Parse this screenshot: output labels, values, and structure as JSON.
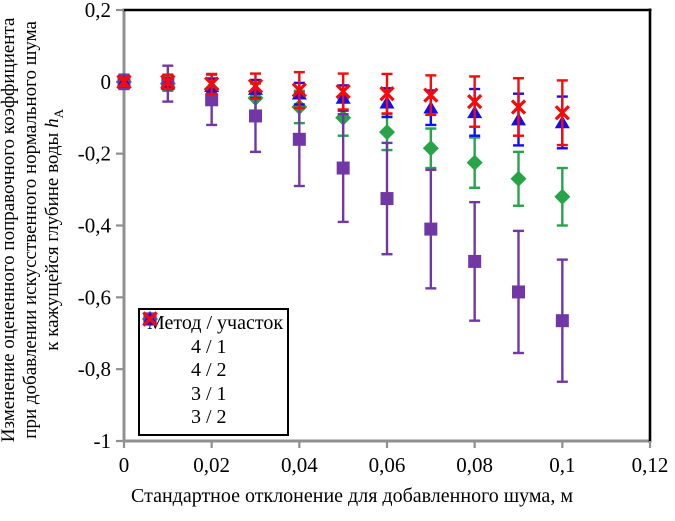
{
  "chart_data": {
    "type": "scatter",
    "title": "",
    "xlabel": "Стандартное отклонение для добавленного шума, м",
    "ylabel_lines": [
      "Изменение оцененного поправочного коэффициента",
      "при добавлении искусственного нормального шума",
      "к кажущейся глубине воды"
    ],
    "ylabel_symbol": "h",
    "ylabel_symbol_sub": "A",
    "xlim": [
      0,
      0.12
    ],
    "ylim": [
      -1,
      0.2
    ],
    "grid": false,
    "axis_color": "#909090",
    "border_color": "#000000",
    "x_ticks": [
      {
        "v": 0,
        "label": "0"
      },
      {
        "v": 0.02,
        "label": "0,02"
      },
      {
        "v": 0.04,
        "label": "0,04"
      },
      {
        "v": 0.06,
        "label": "0,06"
      },
      {
        "v": 0.08,
        "label": "0,08"
      },
      {
        "v": 0.1,
        "label": "0,1"
      },
      {
        "v": 0.12,
        "label": "0,12"
      }
    ],
    "y_ticks": [
      {
        "v": 0.2,
        "label": "0,2"
      },
      {
        "v": 0,
        "label": "0"
      },
      {
        "v": -0.2,
        "label": "-0,2"
      },
      {
        "v": -0.4,
        "label": "-0,4"
      },
      {
        "v": -0.6,
        "label": "-0,6"
      },
      {
        "v": -0.8,
        "label": "-0,8"
      },
      {
        "v": -1,
        "label": "-1"
      }
    ],
    "x": [
      0,
      0.01,
      0.02,
      0.03,
      0.04,
      0.05,
      0.06,
      0.07,
      0.08,
      0.09,
      0.1
    ],
    "legend": {
      "title": "Метод / участок",
      "position": "inside-bottom-left"
    },
    "series": [
      {
        "name": "4 / 1",
        "marker": "diamond",
        "color": "#27A348",
        "values": [
          0,
          -0.005,
          -0.02,
          -0.045,
          -0.07,
          -0.1,
          -0.14,
          -0.185,
          -0.225,
          -0.27,
          -0.32
        ],
        "errors": [
          0.01,
          0.02,
          0.03,
          0.04,
          0.045,
          0.05,
          0.05,
          0.055,
          0.07,
          0.075,
          0.08
        ]
      },
      {
        "name": "4 / 2",
        "marker": "square",
        "color": "#7138A5",
        "values": [
          0,
          -0.005,
          -0.05,
          -0.095,
          -0.16,
          -0.24,
          -0.325,
          -0.41,
          -0.5,
          -0.585,
          -0.665
        ],
        "errors": [
          0.02,
          0.05,
          0.07,
          0.1,
          0.13,
          0.15,
          0.155,
          0.165,
          0.165,
          0.17,
          0.17
        ]
      },
      {
        "name": "3 / 1",
        "marker": "triangle",
        "color": "#0F0FEF",
        "values": [
          0,
          -0.005,
          -0.012,
          -0.02,
          -0.033,
          -0.045,
          -0.058,
          -0.072,
          -0.085,
          -0.105,
          -0.113
        ],
        "errors": [
          0.01,
          0.015,
          0.02,
          0.025,
          0.03,
          0.035,
          0.04,
          0.048,
          0.065,
          0.072,
          0.072
        ]
      },
      {
        "name": "3 / 2",
        "marker": "x",
        "color": "#F40B0B",
        "values": [
          0,
          0,
          -0.006,
          -0.012,
          -0.023,
          -0.027,
          -0.033,
          -0.037,
          -0.055,
          -0.07,
          -0.086
        ],
        "errors": [
          0.012,
          0.02,
          0.028,
          0.035,
          0.05,
          0.05,
          0.055,
          0.055,
          0.07,
          0.08,
          0.09
        ]
      }
    ]
  }
}
